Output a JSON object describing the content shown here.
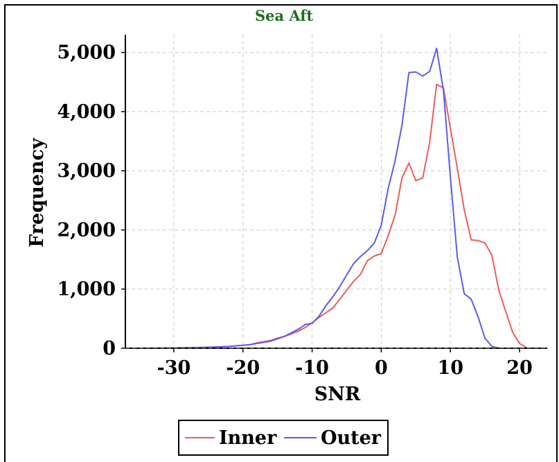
{
  "chart_data": {
    "type": "line",
    "title": "Sea Aft",
    "xlabel": "SNR",
    "ylabel": "Frequency",
    "xlim": [
      -37,
      24
    ],
    "ylim": [
      0,
      5300
    ],
    "x_ticks": [
      -30,
      -20,
      -10,
      0,
      10,
      20
    ],
    "x_tick_labels": [
      "-30",
      "-20",
      "-10",
      "0",
      "10",
      "20"
    ],
    "y_ticks": [
      0,
      1000,
      2000,
      3000,
      4000,
      5000
    ],
    "y_tick_labels": [
      "0",
      "1,000",
      "2,000",
      "3,000",
      "4,000",
      "5,000"
    ],
    "grid": true,
    "legend_position": "bottom",
    "colors": {
      "Inner": "#ef5a5a",
      "Outer": "#5a5aef",
      "title": "#1f6e1f"
    },
    "series": [
      {
        "name": "Inner",
        "x": [
          -35,
          -30,
          -27,
          -24,
          -22,
          -20,
          -19,
          -18,
          -17,
          -16,
          -15,
          -14,
          -13,
          -12,
          -11,
          -10,
          -9,
          -8,
          -7,
          -6,
          -5,
          -4,
          -3,
          -2,
          -1,
          0,
          1,
          2,
          3,
          4,
          5,
          6,
          7,
          8,
          9,
          10,
          11,
          12,
          13,
          14,
          15,
          16,
          17,
          18,
          19,
          20,
          21
        ],
        "y": [
          0,
          5,
          10,
          20,
          30,
          50,
          60,
          90,
          110,
          130,
          170,
          200,
          240,
          290,
          350,
          430,
          520,
          600,
          680,
          830,
          980,
          1130,
          1250,
          1480,
          1560,
          1600,
          1900,
          2250,
          2880,
          3130,
          2830,
          2880,
          3480,
          4460,
          4400,
          3720,
          3040,
          2340,
          1830,
          1820,
          1780,
          1570,
          980,
          620,
          270,
          80,
          10
        ]
      },
      {
        "name": "Outer",
        "x": [
          -34,
          -30,
          -27,
          -24,
          -22,
          -20,
          -19,
          -18,
          -17,
          -16,
          -15,
          -14,
          -13,
          -12,
          -11,
          -10,
          -9,
          -8,
          -7,
          -6,
          -5,
          -4,
          -3,
          -2,
          -1,
          0,
          1,
          2,
          3,
          4,
          5,
          6,
          7,
          8,
          9,
          10,
          11,
          12,
          13,
          14,
          15,
          16,
          17,
          18,
          19,
          20
        ],
        "y": [
          0,
          5,
          10,
          20,
          30,
          50,
          60,
          80,
          100,
          120,
          160,
          200,
          260,
          320,
          400,
          420,
          540,
          720,
          870,
          1040,
          1240,
          1430,
          1550,
          1650,
          1780,
          2080,
          2700,
          3170,
          3770,
          4660,
          4670,
          4600,
          4680,
          5070,
          4360,
          2890,
          1540,
          920,
          830,
          530,
          170,
          30,
          0,
          0,
          0,
          0
        ]
      }
    ]
  }
}
